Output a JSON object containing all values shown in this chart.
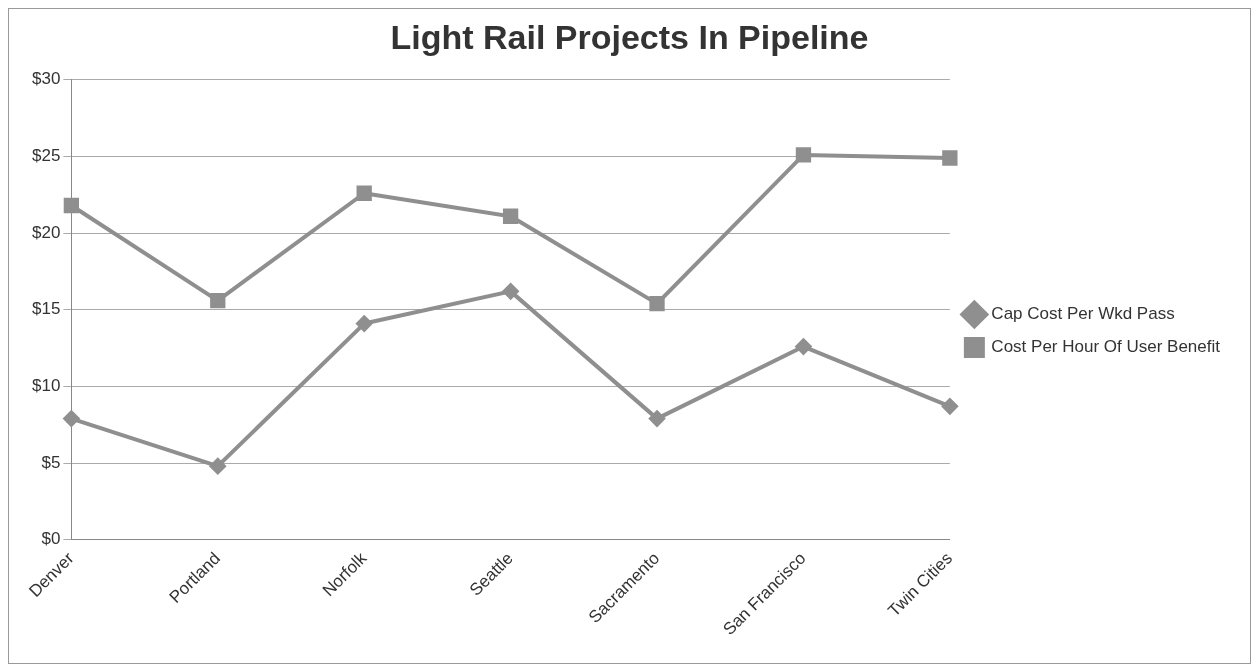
{
  "chart_data": {
    "type": "line",
    "title": "Light Rail Projects In Pipeline",
    "categories": [
      "Denver",
      "Portland",
      "Norfolk",
      "Seattle",
      "Sacramento",
      "San Francisco",
      "Twin Cities"
    ],
    "series": [
      {
        "name": "Cap Cost Per Wkd Pass",
        "color": "#8f8f8f",
        "marker": "diamond",
        "values": [
          7.9,
          4.8,
          14.1,
          16.2,
          7.9,
          12.6,
          8.7
        ]
      },
      {
        "name": "Cost Per Hour Of User Benefit",
        "color": "#8f8f8f",
        "marker": "square",
        "values": [
          21.8,
          15.6,
          22.6,
          21.1,
          15.4,
          25.1,
          24.9
        ]
      }
    ],
    "ylim": [
      0,
      30
    ],
    "yticks": [
      {
        "value": 0,
        "label": "$0"
      },
      {
        "value": 5,
        "label": "$5"
      },
      {
        "value": 10,
        "label": "$10"
      },
      {
        "value": 15,
        "label": "$15"
      },
      {
        "value": 20,
        "label": "$20"
      },
      {
        "value": 25,
        "label": "$25"
      },
      {
        "value": 30,
        "label": "$30"
      }
    ],
    "grid": "y",
    "legend": "right",
    "line_style": "solid"
  }
}
